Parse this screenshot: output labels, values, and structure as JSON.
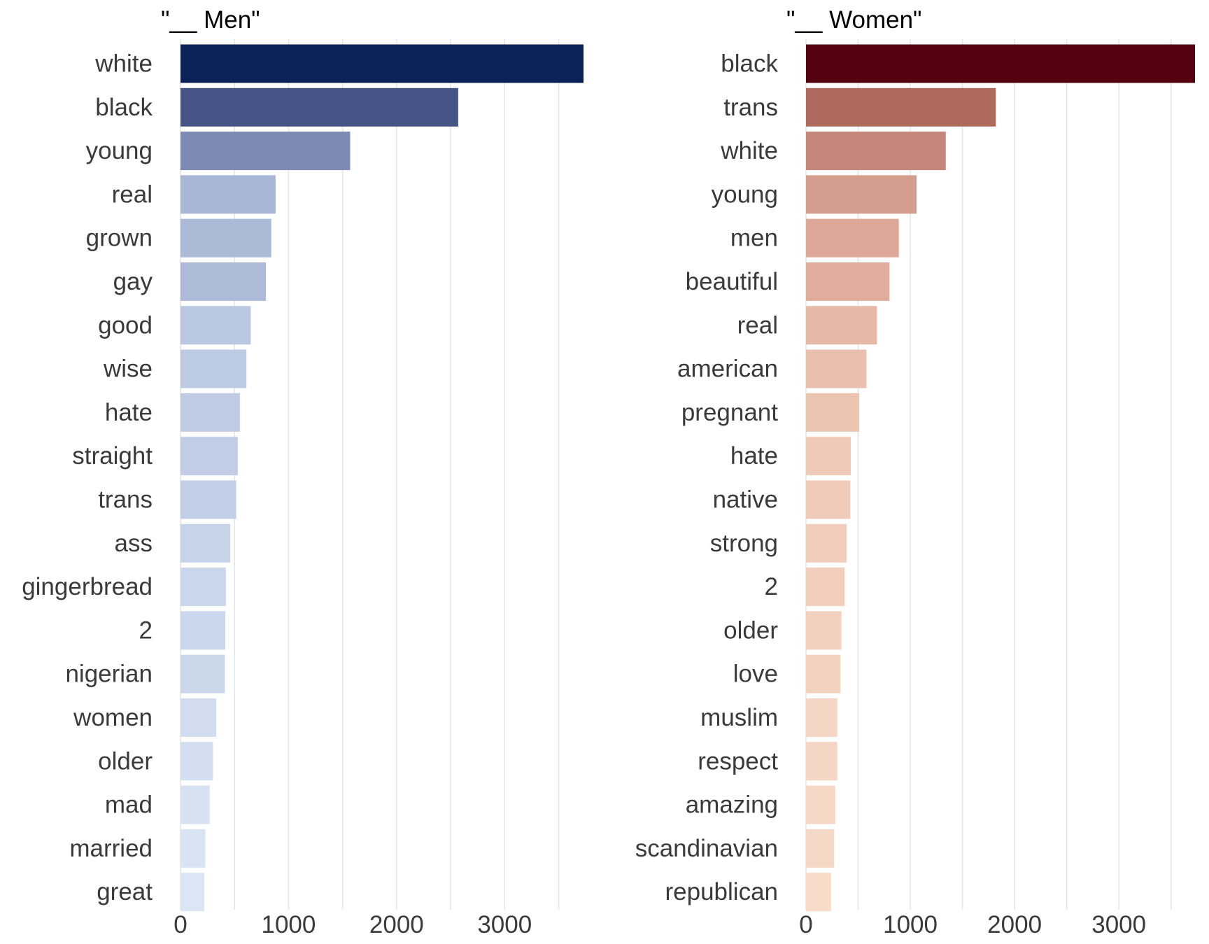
{
  "chart_data": [
    {
      "type": "bar",
      "orientation": "horizontal",
      "title": "\"__  Men\"",
      "categories": [
        "white",
        "black",
        "young",
        "real",
        "grown",
        "gay",
        "good",
        "wise",
        "hate",
        "straight",
        "trans",
        "ass",
        "gingerbread",
        "2",
        "nigerian",
        "women",
        "older",
        "mad",
        "married",
        "great"
      ],
      "values": [
        3730,
        2570,
        1570,
        880,
        840,
        790,
        650,
        610,
        550,
        530,
        515,
        460,
        420,
        415,
        410,
        330,
        300,
        270,
        230,
        220
      ],
      "colors": [
        "#0b2259",
        "#465486",
        "#7d8ab4",
        "#a8b7d5",
        "#abbad7",
        "#adbbd8",
        "#b9c7e1",
        "#bccae2",
        "#bfcce3",
        "#c0cde4",
        "#c2cfe6",
        "#c6d3e9",
        "#c9d6eb",
        "#cad7ec",
        "#cbd8ec",
        "#d1ddef",
        "#d3def0",
        "#d6e1f1",
        "#d9e4f3",
        "#dbe6f4"
      ],
      "xticks": [
        0,
        1000,
        2000,
        3000
      ],
      "xlim": [
        0,
        3730
      ],
      "grid": true
    },
    {
      "type": "bar",
      "orientation": "horizontal",
      "title": "\"__  Women\"",
      "categories": [
        "black",
        "trans",
        "white",
        "young",
        "men",
        "beautiful",
        "real",
        "american",
        "pregnant",
        "hate",
        "native",
        "strong",
        "2",
        "older",
        "love",
        "muslim",
        "respect",
        "amazing",
        "scandinavian",
        "republican"
      ],
      "values": [
        3730,
        1820,
        1340,
        1060,
        890,
        800,
        680,
        580,
        510,
        430,
        425,
        390,
        370,
        340,
        330,
        300,
        300,
        280,
        270,
        240
      ],
      "colors": [
        "#54000e",
        "#ad6a5d",
        "#c5877a",
        "#d49e8e",
        "#dda897",
        "#e0ad9c",
        "#e6b8a6",
        "#e9bfad",
        "#ecc4b2",
        "#f0cab8",
        "#f0cbb9",
        "#f1cdbb",
        "#f2cfbd",
        "#f3d1bf",
        "#f4d2c0",
        "#f5d5c3",
        "#f5d5c3",
        "#f6d7c5",
        "#f6d8c6",
        "#f8dbc9"
      ],
      "xticks": [
        0,
        1000,
        2000,
        3000
      ],
      "xlim": [
        0,
        3730
      ],
      "grid": true
    }
  ]
}
